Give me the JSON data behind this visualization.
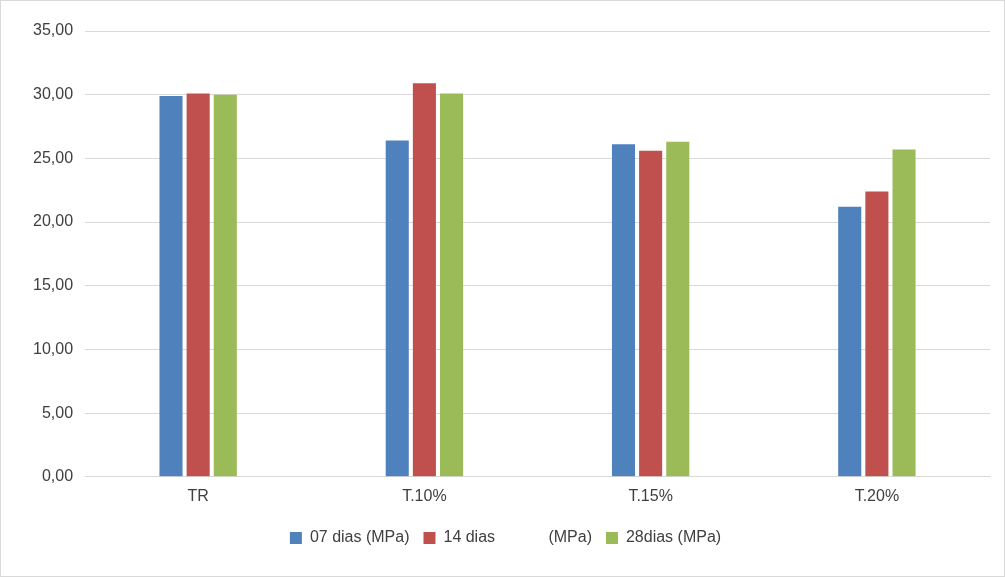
{
  "chart_data": {
    "type": "bar",
    "categories": [
      "TR",
      "T.10%",
      "T.15%",
      "T.20%"
    ],
    "series": [
      {
        "name": "07 dias (MPa)",
        "color": "#4f81bd",
        "values": [
          29.9,
          26.4,
          26.1,
          21.2
        ]
      },
      {
        "name": "14 dias            (MPa)",
        "color": "#c0504d",
        "values": [
          30.1,
          30.9,
          25.6,
          22.4
        ]
      },
      {
        "name": "28dias (MPa)",
        "color": "#9bbb59",
        "values": [
          30.0,
          30.1,
          26.3,
          25.7
        ]
      }
    ],
    "ylim": [
      0,
      35
    ],
    "yticks": [
      {
        "value": 0,
        "label": "0,00"
      },
      {
        "value": 5,
        "label": "5,00"
      },
      {
        "value": 10,
        "label": "10,00"
      },
      {
        "value": 15,
        "label": "15,00"
      },
      {
        "value": 20,
        "label": "20,00"
      },
      {
        "value": 25,
        "label": "25,00"
      },
      {
        "value": 30,
        "label": "30,00"
      },
      {
        "value": 35,
        "label": "35,00"
      }
    ],
    "grid": "y",
    "legend": "bottom"
  }
}
